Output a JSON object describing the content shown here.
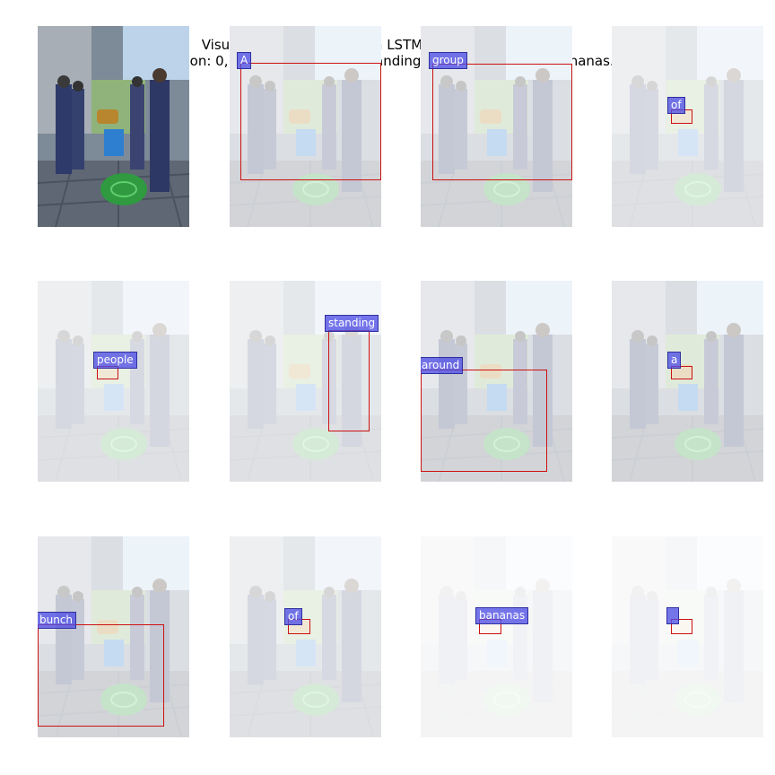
{
  "title_line1": "Visualizing visual attention LSTM for generated caption",
  "title_line2": "Caption: 0, \"A group of people standing around a bunch of bananas.\"",
  "words": [
    "A",
    "group",
    "of",
    "people",
    "standing",
    "around",
    "a",
    "bunch",
    "of",
    "bananas",
    ""
  ],
  "colors": {
    "attention_box": "#cc1111",
    "word_label": "#5050e6",
    "hose": "#2f9a3f",
    "bucket": "#2f7fd0"
  }
}
